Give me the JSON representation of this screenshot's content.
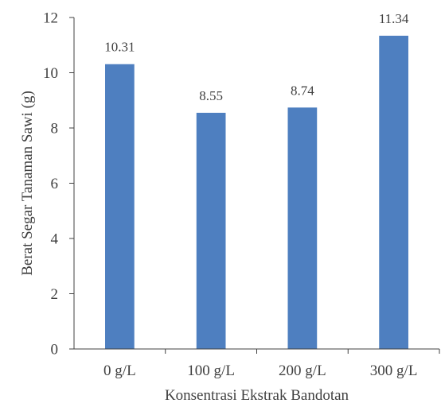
{
  "chart_data": {
    "type": "bar",
    "title": "",
    "xlabel": "Konsentrasi Ekstrak Bandotan",
    "ylabel": "Berat Segar Tanaman Sawi (g)",
    "categories": [
      "0 g/L",
      "100 g/L",
      "200 g/L",
      "300 g/L"
    ],
    "values": [
      10.31,
      8.55,
      8.74,
      11.34
    ],
    "data_labels": [
      "10.31",
      "8.55",
      "8.74",
      "11.34"
    ],
    "ylim": [
      0,
      12
    ],
    "yticks": [
      "0",
      "2",
      "4",
      "6",
      "8",
      "10",
      "12"
    ],
    "grid": false,
    "legend": "none",
    "bar_color": "#4e7fc0",
    "axis_color": "#404040"
  }
}
